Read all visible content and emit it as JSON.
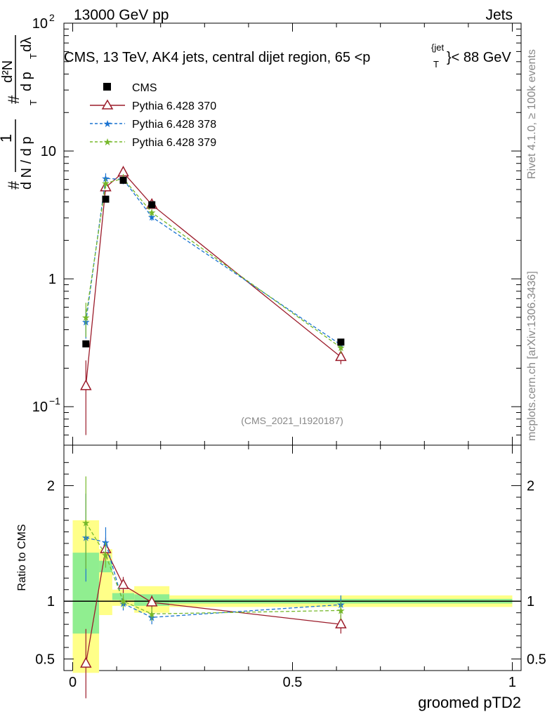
{
  "header": {
    "left": "13000 GeV pp",
    "right": "Jets"
  },
  "side": {
    "rivet": "Rivet 4.1.0, ≥ 100k events",
    "mcplots": "mcplots.cern.ch [arXiv:1306.3436]"
  },
  "chart_data": {
    "type": "scatter",
    "title": "CMS, 13 TeV, AK4 jets, central dijet region, 65 <p_T^{jet}< 88 GeV",
    "title_parts": {
      "prefix": "CMS, 13 TeV, AK4 jets, central dijet region, 65 <p",
      "sub": "T",
      "sup": "{jet",
      "suffix": "}< 88 GeV"
    },
    "ylabel_main": "1/N dN/dp_T d²N/dp_T dλ",
    "ylabel_parts": {
      "hash": "#",
      "one": "1",
      "dN": "d N / d p",
      "T": "T",
      "d2N": "d²N",
      "dp": "d p",
      "dlambda": "dλ"
    },
    "ylabel_ratio": "Ratio to CMS",
    "xlabel": "groomed pTD2",
    "watermark": "(CMS_2021_I1920187)",
    "main_ylim_log": [
      0.05,
      100
    ],
    "main_yticks": [
      {
        "v": 0.1,
        "base": "10",
        "exp": "−1"
      },
      {
        "v": 1,
        "base": "1",
        "exp": ""
      },
      {
        "v": 10,
        "base": "10",
        "exp": ""
      },
      {
        "v": 100,
        "base": "10",
        "exp": "2"
      }
    ],
    "ratio_ylim": [
      0.4,
      2.35
    ],
    "ratio_yticks": [
      {
        "v": 0.5,
        "label": "0.5"
      },
      {
        "v": 1,
        "label": "1"
      },
      {
        "v": 2,
        "label": "2"
      }
    ],
    "xlim": [
      -0.02,
      1.02
    ],
    "xticks": [
      {
        "v": 0,
        "label": "0"
      },
      {
        "v": 0.5,
        "label": "0.5"
      },
      {
        "v": 1,
        "label": "1"
      }
    ],
    "bin_edges": [
      0,
      0.06,
      0.09,
      0.14,
      0.22,
      1.0
    ],
    "data": {
      "name": "CMS",
      "x": [
        0.03,
        0.075,
        0.115,
        0.18,
        0.61
      ],
      "y": [
        0.31,
        4.2,
        5.9,
        3.8,
        0.32
      ]
    },
    "ratio_bands": {
      "stat_lo": [
        0.72,
        1.25,
        1.01,
        0.96,
        0.98
      ],
      "stat_hi": [
        1.42,
        1.35,
        1.07,
        1.06,
        1.02
      ],
      "total_lo": [
        0.38,
        0.88,
        0.96,
        0.9,
        0.95
      ],
      "total_hi": [
        1.7,
        1.45,
        1.1,
        1.13,
        1.05
      ]
    },
    "series": [
      {
        "name": "Pythia 6.428 370",
        "color": "#9b1b2a",
        "style": "solid",
        "marker": "triangle",
        "y": [
          0.145,
          5.2,
          6.8,
          3.8,
          0.245
        ],
        "yerr": [
          0.085,
          0.4,
          0.6,
          0.25,
          0.03
        ],
        "ratio": [
          0.46,
          1.45,
          1.14,
          0.99,
          0.8
        ],
        "ratio_err": [
          0.3,
          0.1,
          0.07,
          0.06,
          0.08
        ]
      },
      {
        "name": "Pythia 6.428 378",
        "color": "#1a73d1",
        "style": "dashed",
        "marker": "star",
        "y": [
          0.46,
          6.1,
          6.0,
          3.05,
          0.305
        ],
        "yerr": [
          0.12,
          0.6,
          0.5,
          0.2,
          0.03
        ],
        "ratio": [
          1.55,
          1.51,
          0.98,
          0.86,
          0.97
        ],
        "ratio_err": [
          0.38,
          0.13,
          0.06,
          0.06,
          0.08
        ]
      },
      {
        "name": "Pythia 6.428 379",
        "color": "#76b82a",
        "style": "dashed",
        "marker": "star",
        "y": [
          0.5,
          5.6,
          6.1,
          3.3,
          0.29
        ],
        "yerr": [
          0.15,
          0.5,
          0.5,
          0.2,
          0.03
        ],
        "ratio": [
          1.68,
          1.4,
          1.0,
          0.89,
          0.92
        ],
        "ratio_err": [
          0.4,
          0.11,
          0.06,
          0.06,
          0.08
        ]
      }
    ]
  }
}
